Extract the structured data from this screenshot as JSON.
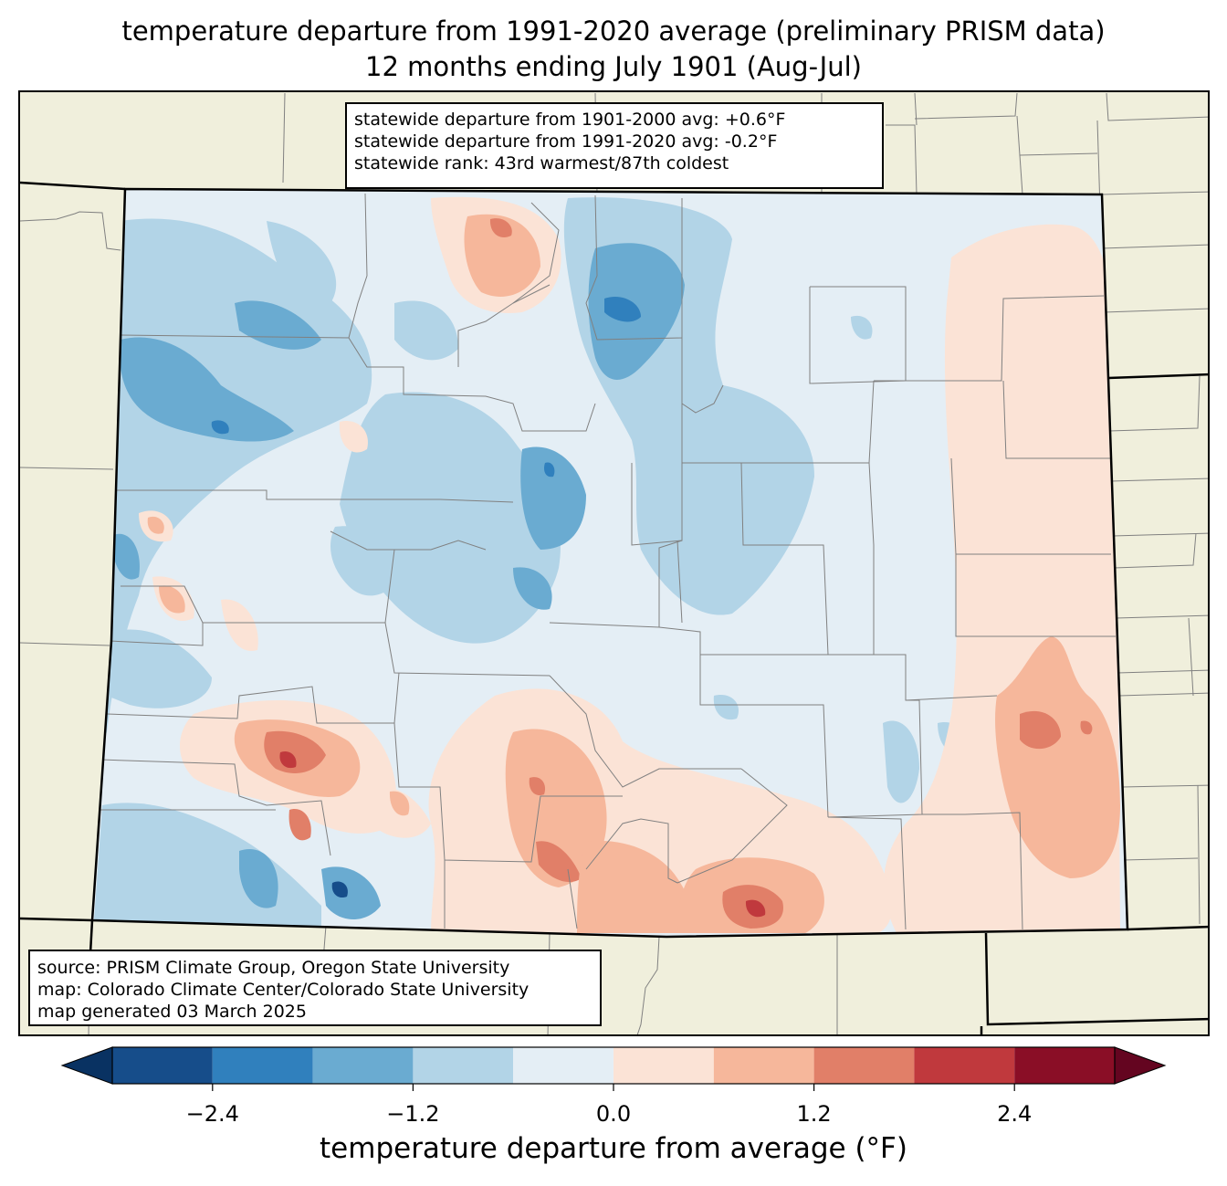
{
  "title": {
    "line1": "temperature departure from 1991-2020 average (preliminary PRISM data)",
    "line2": "12 months ending July 1901 (Aug-Jul)"
  },
  "stats": {
    "line1": "statewide departure from 1901-2000 avg: +0.6°F",
    "line2": "statewide departure from 1991-2020 avg: -0.2°F",
    "line3": "statewide rank: 43rd warmest/87th coldest"
  },
  "source": {
    "line1": "source: PRISM Climate Group, Oregon State University",
    "line2": "map: Colorado Climate Center/Colorado State University",
    "line3": "map generated 03 March 2025"
  },
  "colorbar": {
    "label": "temperature departure from average (°F)",
    "ticks": [
      "−2.4",
      "−1.2",
      "0.0",
      "1.2",
      "2.4"
    ],
    "tick_values": [
      -2.4,
      -1.2,
      0.0,
      1.2,
      2.4
    ],
    "bounds": [
      -3.0,
      3.0
    ],
    "bins": [
      {
        "from": -3.0,
        "to": -2.4,
        "color": "#164d8a"
      },
      {
        "from": -2.4,
        "to": -1.8,
        "color": "#3080bd"
      },
      {
        "from": -1.8,
        "to": -1.2,
        "color": "#6aabd1"
      },
      {
        "from": -1.2,
        "to": -0.6,
        "color": "#b2d4e7"
      },
      {
        "from": -0.6,
        "to": 0.0,
        "color": "#e4eef5"
      },
      {
        "from": 0.0,
        "to": 0.6,
        "color": "#fbe3d6"
      },
      {
        "from": 0.6,
        "to": 1.2,
        "color": "#f6b79b"
      },
      {
        "from": 1.2,
        "to": 1.8,
        "color": "#e17f68"
      },
      {
        "from": 1.8,
        "to": 2.4,
        "color": "#c0393d"
      },
      {
        "from": 2.4,
        "to": 3.0,
        "color": "#8a0e26"
      }
    ],
    "under_color": "#093262",
    "over_color": "#640520"
  },
  "map": {
    "state": "Colorado",
    "background_color": "#f0efdc",
    "county_line_color": "#808080"
  }
}
